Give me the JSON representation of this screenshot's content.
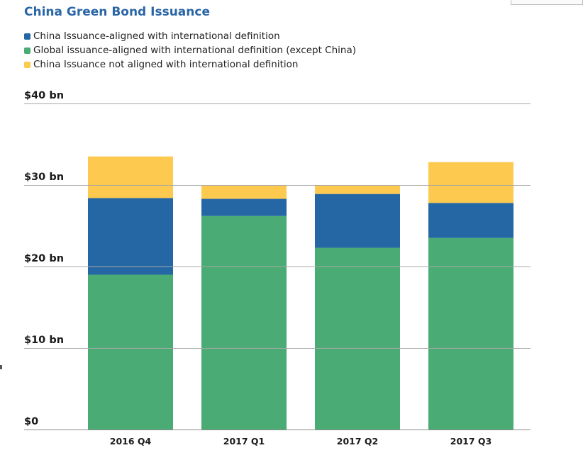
{
  "chart_data": {
    "type": "bar",
    "stacked": true,
    "title": "China Green Bond Issuance",
    "categories": [
      "2016 Q4",
      "2017 Q1",
      "2017 Q2",
      "2017 Q3"
    ],
    "series": [
      {
        "name": "Global issuance-aligned with international definition (except China)",
        "color": "#4aab75",
        "values": [
          19.0,
          26.2,
          22.3,
          23.5
        ]
      },
      {
        "name": "China Issuance-aligned with international definition",
        "color": "#2566a5",
        "values": [
          9.4,
          2.1,
          6.6,
          4.3
        ]
      },
      {
        "name": "China Issuance not aligned with international definition",
        "color": "#fdca4f",
        "values": [
          5.1,
          1.7,
          1.1,
          5.0
        ]
      }
    ],
    "legend_order": [
      1,
      0,
      2
    ],
    "yticks": [
      {
        "value": 0,
        "label": "$0"
      },
      {
        "value": 10,
        "label": "$10 bn"
      },
      {
        "value": 20,
        "label": "$20 bn"
      },
      {
        "value": 30,
        "label": "$30 bn"
      },
      {
        "value": 40,
        "label": "$40 bn"
      }
    ],
    "ylim": [
      0,
      40
    ],
    "grid": true,
    "legend_position": "top-left"
  }
}
